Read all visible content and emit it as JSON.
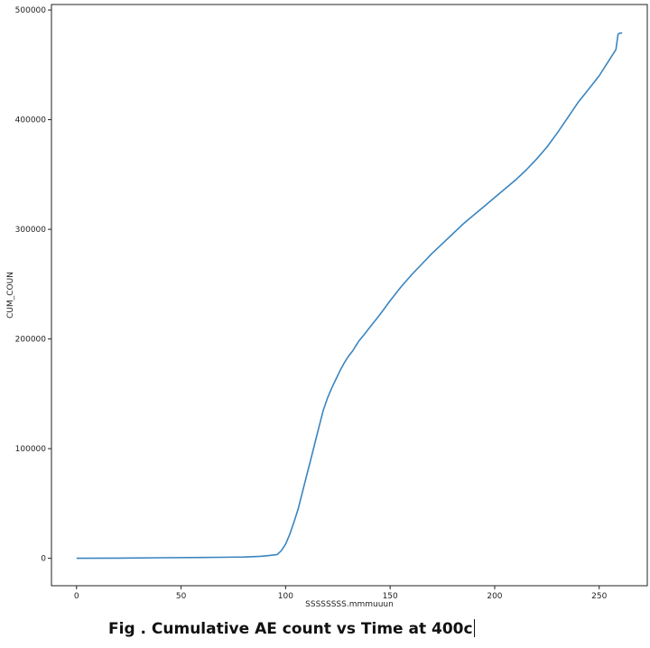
{
  "caption": "Fig . Cumulative AE count vs Time at 400c",
  "chart_data": {
    "type": "line",
    "xlabel": "SSSSSSSS.mmmuuun",
    "ylabel": "CUM_COUN",
    "xlim": [
      -12,
      273
    ],
    "ylim": [
      -25000,
      505000
    ],
    "xticks": [
      0,
      50,
      100,
      150,
      200,
      250
    ],
    "yticks": [
      0,
      100000,
      200000,
      300000,
      400000,
      500000
    ],
    "grid": false,
    "color": "#3a85c0",
    "series": [
      {
        "x": [
          0,
          20,
          40,
          60,
          80,
          88,
          92,
          96,
          98,
          100,
          102,
          104,
          106,
          108,
          110,
          112,
          114,
          116,
          118,
          120,
          122,
          124,
          126,
          128,
          130,
          132,
          135,
          138,
          140,
          145,
          150,
          155,
          160,
          165,
          170,
          175,
          180,
          185,
          190,
          195,
          200,
          205,
          210,
          215,
          220,
          225,
          230,
          235,
          240,
          245,
          250,
          255,
          258,
          259,
          260,
          261
        ],
        "y": [
          0,
          200,
          500,
          800,
          1200,
          1800,
          2500,
          3500,
          7000,
          13000,
          22000,
          33000,
          45000,
          60000,
          75000,
          90000,
          105000,
          120000,
          135000,
          146000,
          155000,
          163000,
          171000,
          178000,
          184000,
          189000,
          198000,
          205000,
          210000,
          222000,
          235000,
          247000,
          258000,
          268000,
          278000,
          287000,
          296000,
          305000,
          313000,
          321000,
          329000,
          337000,
          345000,
          354000,
          364000,
          375000,
          388000,
          402000,
          416000,
          428000,
          440000,
          455000,
          464000,
          478000,
          479000,
          479000
        ]
      }
    ]
  }
}
